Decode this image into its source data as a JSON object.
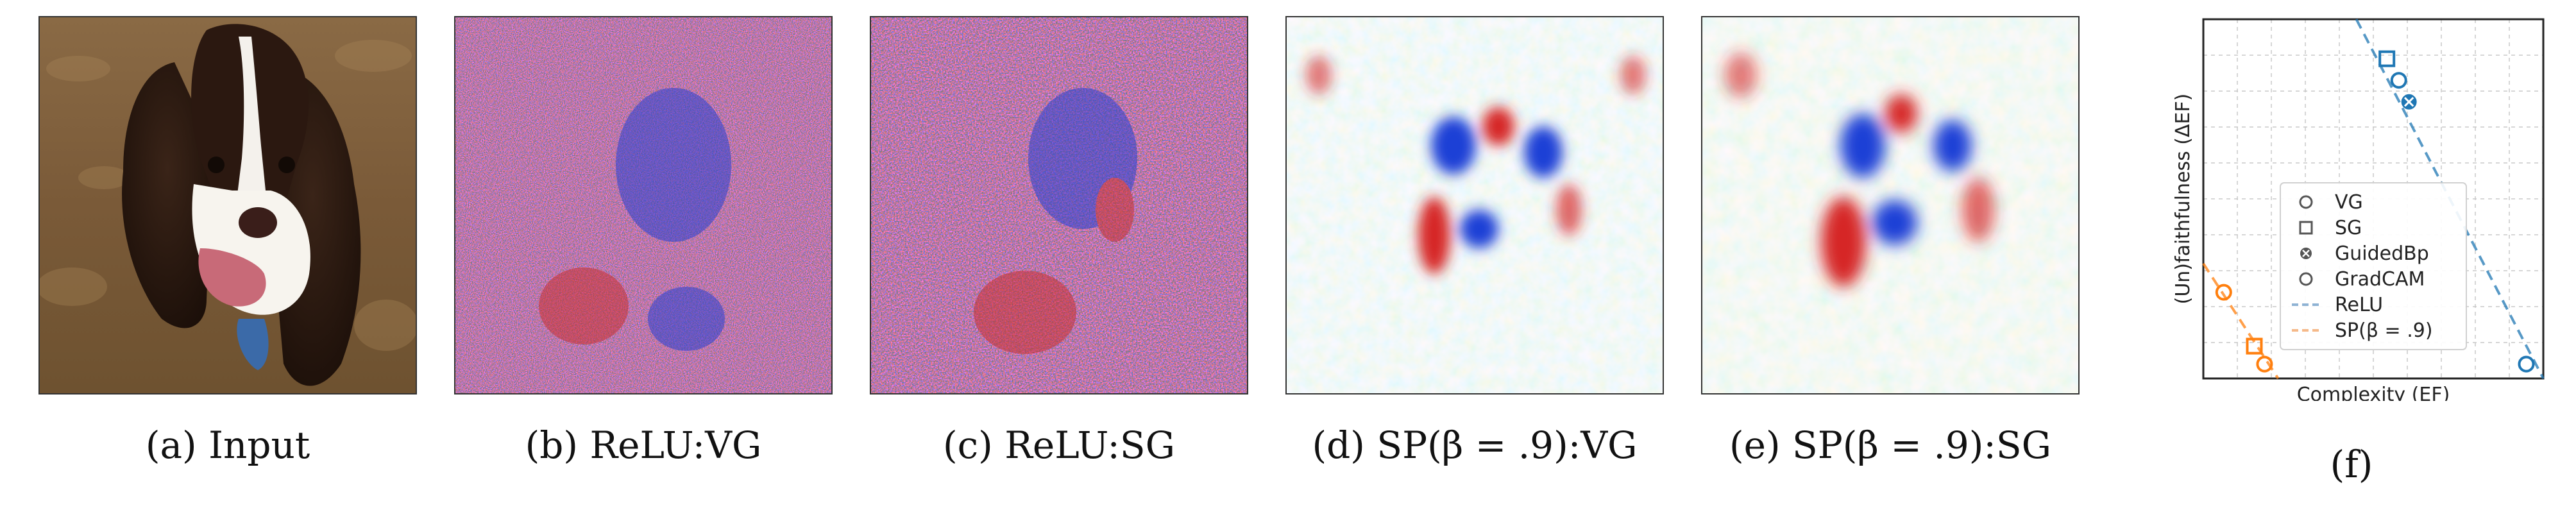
{
  "figure": {
    "captions": {
      "a": "(a) Input",
      "b": "(b) ReLU:VG",
      "c": "(c) ReLU:SG",
      "d": "(d) SP(β = .9):VG",
      "e": "(e) SP(β = .9):SG",
      "f": "(f)"
    },
    "colors": {
      "positive": "#d62728",
      "negative": "#1f3fd6",
      "relu": "#1f77b4",
      "softplus": "#ff7f0e"
    }
  },
  "chart_data": {
    "type": "scatter",
    "xlabel": "Complexity (EF)",
    "ylabel": "(Un)faithfulness (ΔEF)",
    "xlim": [
      0,
      10
    ],
    "ylim": [
      0,
      10
    ],
    "grid": true,
    "legend_position": "lower-center",
    "legend": [
      {
        "label": "VG",
        "marker": "circle"
      },
      {
        "label": "SG",
        "marker": "square"
      },
      {
        "label": "GuidedBp",
        "marker": "x-circle"
      },
      {
        "label": "GradCAM",
        "marker": "circle"
      },
      {
        "label": "ReLU",
        "marker": "dashed-line"
      },
      {
        "label": "SP(β = .9)",
        "marker": "dashed-line"
      }
    ],
    "series": [
      {
        "name": "ReLU",
        "color": "#1f77b4",
        "points": [
          {
            "method": "SG",
            "marker": "square",
            "x": 5.4,
            "y": 8.9
          },
          {
            "method": "VG",
            "marker": "circle",
            "x": 5.75,
            "y": 8.3
          },
          {
            "method": "GuidedBp",
            "marker": "x-circle",
            "x": 6.05,
            "y": 7.7
          },
          {
            "method": "GradCAM",
            "marker": "circle",
            "x": 9.5,
            "y": 0.4
          }
        ],
        "fit_line": [
          [
            4.5,
            10
          ],
          [
            10,
            0
          ]
        ]
      },
      {
        "name": "SP(β = .9)",
        "color": "#ff7f0e",
        "points": [
          {
            "method": "GradCAM",
            "marker": "circle",
            "x": 0.6,
            "y": 2.4
          },
          {
            "method": "SG",
            "marker": "square",
            "x": 1.5,
            "y": 0.9
          },
          {
            "method": "VG",
            "marker": "circle",
            "x": 1.8,
            "y": 0.4
          }
        ],
        "fit_line": [
          [
            0,
            3.2
          ],
          [
            2.2,
            0
          ]
        ]
      }
    ]
  }
}
